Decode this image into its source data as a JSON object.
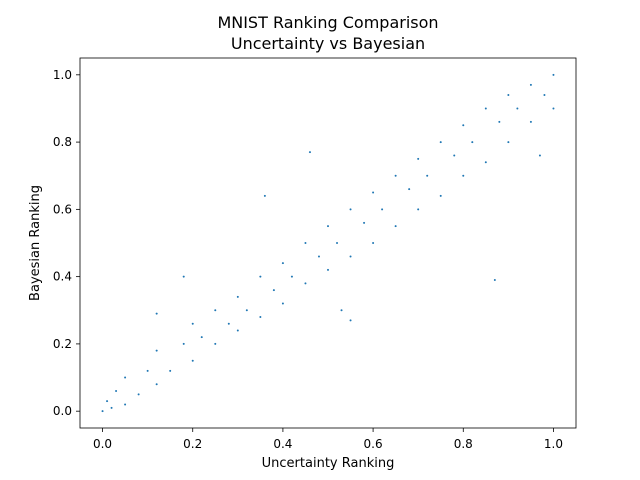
{
  "chart_data": {
    "type": "scatter",
    "title": [
      "MNIST Ranking Comparison",
      "Uncertainty vs Bayesian"
    ],
    "xlabel": "Uncertainty Ranking",
    "ylabel": "Bayesian Ranking",
    "xlim": [
      -0.05,
      1.05
    ],
    "ylim": [
      -0.05,
      1.05
    ],
    "xticks": [
      0.0,
      0.2,
      0.4,
      0.6,
      0.8,
      1.0
    ],
    "yticks": [
      0.0,
      0.2,
      0.4,
      0.6,
      0.8,
      1.0
    ],
    "xtick_labels": [
      "0.0",
      "0.2",
      "0.4",
      "0.6",
      "0.8",
      "1.0"
    ],
    "ytick_labels": [
      "0.0",
      "0.2",
      "0.4",
      "0.6",
      "0.8",
      "1.0"
    ],
    "grid": false,
    "series": [
      {
        "color": "#1f77b4",
        "marker_size": 1,
        "points": [
          [
            0.0,
            0.0
          ],
          [
            0.01,
            0.03
          ],
          [
            0.02,
            0.01
          ],
          [
            0.03,
            0.06
          ],
          [
            0.05,
            0.02
          ],
          [
            0.05,
            0.1
          ],
          [
            0.08,
            0.05
          ],
          [
            0.1,
            0.12
          ],
          [
            0.12,
            0.08
          ],
          [
            0.12,
            0.18
          ],
          [
            0.15,
            0.12
          ],
          [
            0.18,
            0.2
          ],
          [
            0.2,
            0.15
          ],
          [
            0.2,
            0.26
          ],
          [
            0.22,
            0.22
          ],
          [
            0.25,
            0.2
          ],
          [
            0.25,
            0.3
          ],
          [
            0.28,
            0.26
          ],
          [
            0.3,
            0.24
          ],
          [
            0.3,
            0.34
          ],
          [
            0.32,
            0.3
          ],
          [
            0.35,
            0.28
          ],
          [
            0.35,
            0.4
          ],
          [
            0.38,
            0.36
          ],
          [
            0.4,
            0.32
          ],
          [
            0.4,
            0.44
          ],
          [
            0.42,
            0.4
          ],
          [
            0.45,
            0.38
          ],
          [
            0.45,
            0.5
          ],
          [
            0.48,
            0.46
          ],
          [
            0.5,
            0.42
          ],
          [
            0.5,
            0.55
          ],
          [
            0.52,
            0.5
          ],
          [
            0.55,
            0.46
          ],
          [
            0.55,
            0.6
          ],
          [
            0.58,
            0.56
          ],
          [
            0.6,
            0.5
          ],
          [
            0.6,
            0.65
          ],
          [
            0.62,
            0.6
          ],
          [
            0.65,
            0.55
          ],
          [
            0.65,
            0.7
          ],
          [
            0.68,
            0.66
          ],
          [
            0.7,
            0.6
          ],
          [
            0.7,
            0.75
          ],
          [
            0.72,
            0.7
          ],
          [
            0.75,
            0.64
          ],
          [
            0.75,
            0.8
          ],
          [
            0.78,
            0.76
          ],
          [
            0.8,
            0.7
          ],
          [
            0.8,
            0.85
          ],
          [
            0.82,
            0.8
          ],
          [
            0.85,
            0.74
          ],
          [
            0.85,
            0.9
          ],
          [
            0.88,
            0.86
          ],
          [
            0.9,
            0.8
          ],
          [
            0.9,
            0.94
          ],
          [
            0.92,
            0.9
          ],
          [
            0.95,
            0.86
          ],
          [
            0.95,
            0.97
          ],
          [
            0.98,
            0.94
          ],
          [
            1.0,
            0.9
          ],
          [
            1.0,
            1.0
          ],
          [
            0.87,
            0.39
          ],
          [
            0.18,
            0.4
          ],
          [
            0.12,
            0.29
          ],
          [
            0.53,
            0.3
          ],
          [
            0.55,
            0.27
          ],
          [
            0.97,
            0.76
          ],
          [
            0.36,
            0.64
          ],
          [
            0.46,
            0.77
          ]
        ]
      }
    ]
  }
}
